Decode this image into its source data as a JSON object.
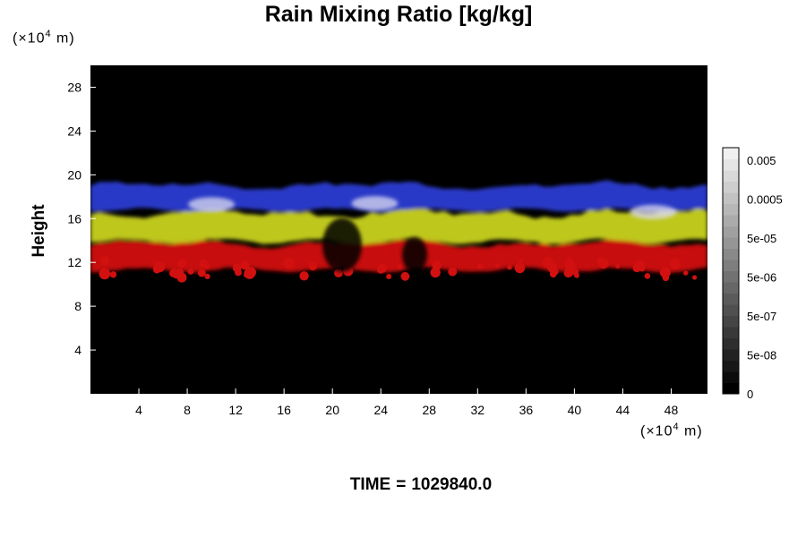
{
  "chart_data": {
    "type": "heatmap",
    "title": "Rain Mixing Ratio [kg/kg]",
    "ylabel": "Height",
    "xlabel": "",
    "x_unit_prefix": "(×10",
    "x_unit_exp": "4",
    "x_unit_suffix": " m)",
    "y_unit_prefix": "(×10",
    "y_unit_exp": "4",
    "y_unit_suffix": " m)",
    "xlim": [
      0,
      51
    ],
    "ylim": [
      0,
      30
    ],
    "x_ticks": [
      4,
      8,
      12,
      16,
      20,
      24,
      28,
      32,
      36,
      40,
      44,
      48
    ],
    "y_ticks": [
      4,
      8,
      12,
      16,
      20,
      24,
      28
    ],
    "background_color": "#000000",
    "colorbar": {
      "labels": [
        "0.005",
        "0.0005",
        "5e-05",
        "5e-06",
        "5e-07",
        "5e-08",
        "0"
      ],
      "levels": 22
    },
    "layers": [
      {
        "color": "#d21010",
        "bottom": [
          10.9,
          11.6
        ],
        "top": [
          13.2,
          14.3
        ],
        "description": "lower layer"
      },
      {
        "color": "#c8d21c",
        "bottom": [
          13.5,
          14.2
        ],
        "top": [
          15.8,
          17.2
        ],
        "description": "middle layer"
      },
      {
        "color": "#2a3cd2",
        "bottom": [
          16.5,
          17.0
        ],
        "top": [
          18.5,
          19.6
        ],
        "description": "upper layer"
      }
    ],
    "time_label": "TIME",
    "time_eq": "=",
    "time_value": "1029840.0"
  }
}
